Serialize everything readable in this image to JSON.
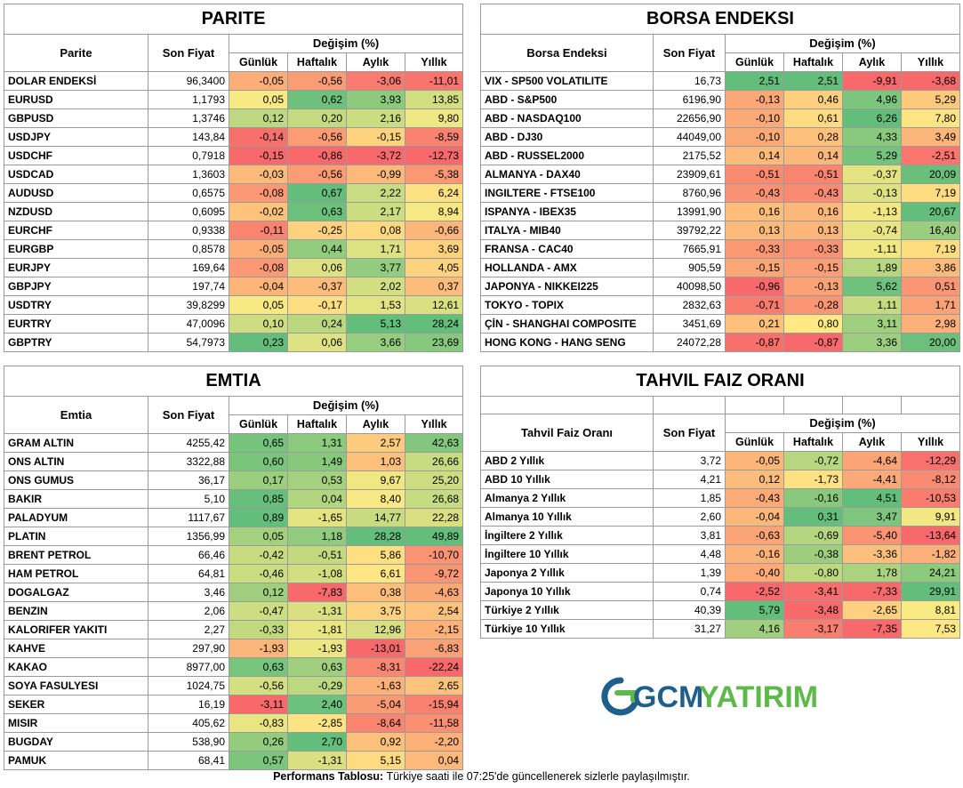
{
  "sub_headers": [
    "Günlük",
    "Haftalık",
    "Aylık",
    "Yıllık"
  ],
  "degisim_label": "Değişim (%)",
  "son_fiyat_label": "Son Fiyat",
  "parite": {
    "title": "PARITE",
    "col_label": "Parite",
    "rows": [
      [
        "DOLAR ENDEKSİ",
        "96,3400",
        "-0,05",
        "-0,56",
        "-3,06",
        "-11,01"
      ],
      [
        "EURUSD",
        "1,1793",
        "0,05",
        "0,62",
        "3,93",
        "13,85"
      ],
      [
        "GBPUSD",
        "1,3746",
        "0,12",
        "0,20",
        "2,16",
        "9,80"
      ],
      [
        "USDJPY",
        "143,84",
        "-0,14",
        "-0,56",
        "-0,15",
        "-8,59"
      ],
      [
        "USDCHF",
        "0,7918",
        "-0,15",
        "-0,86",
        "-3,72",
        "-12,73"
      ],
      [
        "USDCAD",
        "1,3603",
        "-0,03",
        "-0,56",
        "-0,99",
        "-5,38"
      ],
      [
        "AUDUSD",
        "0,6575",
        "-0,08",
        "0,67",
        "2,22",
        "6,24"
      ],
      [
        "NZDUSD",
        "0,6095",
        "-0,02",
        "0,63",
        "2,17",
        "8,94"
      ],
      [
        "EURCHF",
        "0,9338",
        "-0,11",
        "-0,25",
        "0,08",
        "-0,66"
      ],
      [
        "EURGBP",
        "0,8578",
        "-0,05",
        "0,44",
        "1,71",
        "3,69"
      ],
      [
        "EURJPY",
        "169,64",
        "-0,08",
        "0,06",
        "3,77",
        "4,05"
      ],
      [
        "GBPJPY",
        "197,74",
        "-0,04",
        "-0,37",
        "2,02",
        "0,37"
      ],
      [
        "USDTRY",
        "39,8299",
        "0,05",
        "-0,17",
        "1,53",
        "12,61"
      ],
      [
        "EURTRY",
        "47,0096",
        "0,10",
        "0,24",
        "5,13",
        "28,24"
      ],
      [
        "GBPTRY",
        "54,7973",
        "0,23",
        "0,06",
        "3,66",
        "23,69"
      ]
    ]
  },
  "borsa": {
    "title": "BORSA ENDEKSI",
    "col_label": "Borsa Endeksi",
    "rows": [
      [
        "VIX  - SP500 VOLATILITE",
        "16,73",
        "2,51",
        "2,51",
        "-9,91",
        "-3,68"
      ],
      [
        "ABD - S&P500",
        "6196,90",
        "-0,13",
        "0,46",
        "4,96",
        "5,29"
      ],
      [
        "ABD - NASDAQ100",
        "22656,90",
        "-0,10",
        "0,61",
        "6,26",
        "7,80"
      ],
      [
        "ABD - DJ30",
        "44049,00",
        "-0,10",
        "0,28",
        "4,33",
        "3,49"
      ],
      [
        "ABD - RUSSEL2000",
        "2175,52",
        "0,14",
        "0,14",
        "5,29",
        "-2,51"
      ],
      [
        "ALMANYA - DAX40",
        "23909,61",
        "-0,51",
        "-0,51",
        "-0,37",
        "20,09"
      ],
      [
        "INGILTERE - FTSE100",
        "8760,96",
        "-0,43",
        "-0,43",
        "-0,13",
        "7,19"
      ],
      [
        "ISPANYA - IBEX35",
        "13991,90",
        "0,16",
        "0,16",
        "-1,13",
        "20,67"
      ],
      [
        "ITALYA - MIB40",
        "39792,22",
        "0,13",
        "0,13",
        "-0,74",
        "16,40"
      ],
      [
        "FRANSA - CAC40",
        "7665,91",
        "-0,33",
        "-0,33",
        "-1,11",
        "7,19"
      ],
      [
        "HOLLANDA - AMX",
        "905,59",
        "-0,15",
        "-0,15",
        "1,89",
        "3,86"
      ],
      [
        "JAPONYA - NIKKEI225",
        "40098,50",
        "-0,96",
        "-0,13",
        "5,62",
        "0,51"
      ],
      [
        "TOKYO - TOPIX",
        "2832,63",
        "-0,71",
        "-0,28",
        "1,11",
        "1,71"
      ],
      [
        "ÇİN - SHANGHAI COMPOSITE",
        "3451,69",
        "0,21",
        "0,80",
        "3,11",
        "2,98"
      ],
      [
        "HONG KONG - HANG SENG",
        "24072,28",
        "-0,87",
        "-0,87",
        "3,36",
        "20,00"
      ]
    ]
  },
  "emtia": {
    "title": "EMTIA",
    "col_label": "Emtia",
    "rows": [
      [
        "GRAM ALTIN",
        "4255,42",
        "0,65",
        "1,31",
        "2,57",
        "42,63"
      ],
      [
        "ONS ALTIN",
        "3322,88",
        "0,60",
        "1,49",
        "1,03",
        "26,66"
      ],
      [
        "ONS GUMUS",
        "36,17",
        "0,17",
        "0,53",
        "9,67",
        "25,20"
      ],
      [
        "BAKIR",
        "5,10",
        "0,85",
        "0,04",
        "8,40",
        "26,68"
      ],
      [
        "PALADYUM",
        "1117,67",
        "0,89",
        "-1,65",
        "14,77",
        "22,28"
      ],
      [
        "PLATIN",
        "1356,99",
        "0,05",
        "1,18",
        "28,28",
        "49,89"
      ],
      [
        "BRENT PETROL",
        "66,46",
        "-0,42",
        "-0,51",
        "5,86",
        "-10,70"
      ],
      [
        "HAM PETROL",
        "64,81",
        "-0,46",
        "-1,08",
        "6,61",
        "-9,72"
      ],
      [
        "DOGALGAZ",
        "3,46",
        "0,12",
        "-7,83",
        "0,38",
        "-4,63"
      ],
      [
        "BENZIN",
        "2,06",
        "-0,47",
        "-1,31",
        "3,75",
        "2,54"
      ],
      [
        "KALORIFER YAKITI",
        "2,27",
        "-0,33",
        "-1,81",
        "12,96",
        "-2,15"
      ],
      [
        "KAHVE",
        "297,90",
        "-1,93",
        "-1,93",
        "-13,01",
        "-6,83"
      ],
      [
        "KAKAO",
        "8977,00",
        "0,63",
        "0,63",
        "-8,31",
        "-22,24"
      ],
      [
        "SOYA FASULYESI",
        "1024,75",
        "-0,56",
        "-0,29",
        "-1,63",
        "2,65"
      ],
      [
        "SEKER",
        "16,19",
        "-3,11",
        "2,40",
        "-5,04",
        "-15,94"
      ],
      [
        "MISIR",
        "405,62",
        "-0,83",
        "-2,85",
        "-8,64",
        "-11,58"
      ],
      [
        "BUGDAY",
        "538,90",
        "0,26",
        "2,70",
        "0,92",
        "-2,20"
      ],
      [
        "PAMUK",
        "68,41",
        "0,57",
        "-1,31",
        "5,15",
        "0,04"
      ]
    ]
  },
  "tahvil": {
    "title": "TAHVIL FAIZ ORANI",
    "col_label": "Tahvil Faiz Oranı",
    "rows": [
      [
        "ABD 2 Yıllık",
        "3,72",
        "-0,05",
        "-0,72",
        "-4,64",
        "-12,29"
      ],
      [
        "ABD 10 Yıllık",
        "4,21",
        "0,12",
        "-1,73",
        "-4,41",
        "-8,12"
      ],
      [
        "Almanya 2 Yıllık",
        "1,85",
        "-0,43",
        "-0,16",
        "4,51",
        "-10,53"
      ],
      [
        "Almanya 10 Yıllık",
        "2,60",
        "-0,04",
        "0,31",
        "3,47",
        "9,91"
      ],
      [
        "İngiltere 2 Yıllık",
        "3,81",
        "-0,63",
        "-0,69",
        "-5,40",
        "-13,64"
      ],
      [
        "İngiltere 10 Yıllık",
        "4,48",
        "-0,16",
        "-0,38",
        "-3,36",
        "-1,82"
      ],
      [
        "Japonya 2 Yıllık",
        "1,39",
        "-0,40",
        "-0,80",
        "1,78",
        "24,21"
      ],
      [
        "Japonya 10 Yıllık",
        "0,74",
        "-2,52",
        "-3,41",
        "-7,33",
        "29,91"
      ],
      [
        "Türkiye 2 Yıllık",
        "40,39",
        "5,79",
        "-3,48",
        "-2,65",
        "8,81"
      ],
      [
        "Türkiye 10 Yıllık",
        "31,27",
        "4,16",
        "-3,17",
        "-7,35",
        "7,53"
      ]
    ]
  },
  "footer": {
    "bold": "Performans Tablosu:",
    "text": " Türkiye saati ile 07:25'de güncellenerek sizlerle paylaşılmıştır."
  },
  "logo": {
    "part1": "GCM",
    "part2": "YATIRIM"
  },
  "colors": {
    "green": "#63be7b",
    "yellow": "#ffeb84",
    "red": "#f8696b",
    "logo_blue": "#1f5f8b",
    "logo_green": "#5fb84a"
  }
}
